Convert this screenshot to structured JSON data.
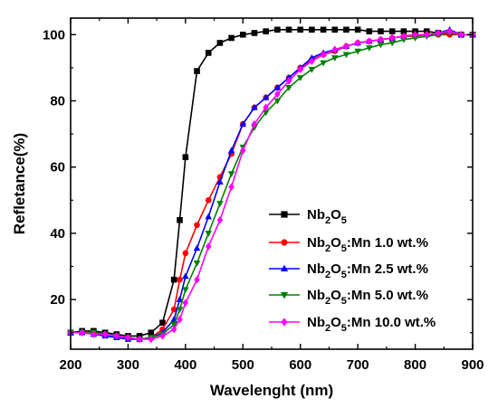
{
  "chart_data": {
    "type": "line",
    "xlabel": "Wavelenght (nm)",
    "ylabel": "Refletance(%)",
    "xlim": [
      200,
      900
    ],
    "ylim": [
      5,
      105
    ],
    "x_ticks": [
      200,
      300,
      400,
      500,
      600,
      700,
      800,
      900
    ],
    "y_ticks": [
      20,
      40,
      60,
      80,
      100
    ],
    "grid": false,
    "legend_position": "lower-right",
    "x": [
      200,
      220,
      240,
      260,
      280,
      300,
      320,
      340,
      360,
      380,
      390,
      400,
      420,
      440,
      460,
      480,
      500,
      520,
      540,
      560,
      580,
      600,
      620,
      640,
      660,
      680,
      700,
      720,
      740,
      760,
      780,
      800,
      820,
      840,
      860,
      880,
      900
    ],
    "series": [
      {
        "name": "Nb2O5",
        "legend_parts": {
          "base": "Nb",
          "sub1": "2",
          "mid": "O",
          "sub2": "5",
          "suffix": ""
        },
        "color": "#000000",
        "marker": "square",
        "values": [
          10,
          10.5,
          10.5,
          10,
          9.5,
          9,
          9,
          10,
          13,
          26,
          44,
          63,
          89,
          94.5,
          97.5,
          99,
          100,
          100.5,
          101,
          101.5,
          101.5,
          101.5,
          101.5,
          101.5,
          101.5,
          101.5,
          101.5,
          101,
          101,
          101,
          101,
          101,
          101,
          100.5,
          100.5,
          100,
          100
        ]
      },
      {
        "name": "Nb2O5:Mn 1.0 wt.%",
        "legend_parts": {
          "base": "Nb",
          "sub1": "2",
          "mid": "O",
          "sub2": "5",
          "suffix": ":Mn 1.0 wt.%"
        },
        "color": "#ff0000",
        "marker": "circle",
        "values": [
          10,
          10,
          10,
          9.5,
          9,
          8.5,
          8,
          8.5,
          11,
          17,
          26,
          34,
          42.5,
          50,
          57,
          64,
          73,
          78,
          81,
          84,
          87,
          90,
          92.5,
          94,
          95,
          96.5,
          97.5,
          98,
          98.5,
          99,
          99.5,
          99.5,
          100,
          100,
          100,
          100,
          100
        ]
      },
      {
        "name": "Nb2O5:Mn 2.5 wt.%",
        "legend_parts": {
          "base": "Nb",
          "sub1": "2",
          "mid": "O",
          "sub2": "5",
          "suffix": ":Mn 2.5 wt.%"
        },
        "color": "#0000ff",
        "marker": "triangle-up",
        "values": [
          10,
          10,
          9.5,
          9,
          8.5,
          8,
          8,
          8.5,
          10,
          14,
          20,
          27,
          35.5,
          45,
          55.5,
          65,
          73,
          78,
          81,
          84,
          87,
          90,
          93,
          94.5,
          95.5,
          96.5,
          97.5,
          98,
          98.5,
          99,
          99.5,
          100,
          100,
          100.5,
          101.5,
          100,
          100
        ]
      },
      {
        "name": "Nb2O5:Mn 5.0 wt.%",
        "legend_parts": {
          "base": "Nb",
          "sub1": "2",
          "mid": "O",
          "sub2": "5",
          "suffix": ":Mn 5.0 wt.%"
        },
        "color": "#008000",
        "marker": "triangle-down",
        "values": [
          10,
          10,
          10,
          9.5,
          9,
          8.5,
          8,
          8.5,
          9.5,
          12.5,
          17,
          23,
          31,
          40,
          49,
          58,
          66,
          72,
          76.5,
          80,
          84,
          87,
          89.5,
          91.5,
          93,
          94,
          95,
          96,
          97,
          97.5,
          98.5,
          99,
          99.5,
          100,
          100.5,
          100,
          100
        ]
      },
      {
        "name": "Nb2O5:Mn 10.0 wt.%",
        "legend_parts": {
          "base": "Nb",
          "sub1": "2",
          "mid": "O",
          "sub2": "5",
          "suffix": ":Mn 10.0 wt.%"
        },
        "color": "#ff00ff",
        "marker": "diamond",
        "values": [
          10,
          10,
          9.5,
          9.5,
          9,
          8.5,
          8,
          8,
          9,
          11,
          14,
          19,
          26,
          36,
          44,
          54,
          65,
          73,
          78,
          82,
          86,
          89.5,
          92,
          94,
          95.5,
          96.5,
          97.5,
          98,
          98.5,
          99,
          99.5,
          100,
          100,
          100.5,
          101,
          100,
          100
        ]
      }
    ]
  }
}
